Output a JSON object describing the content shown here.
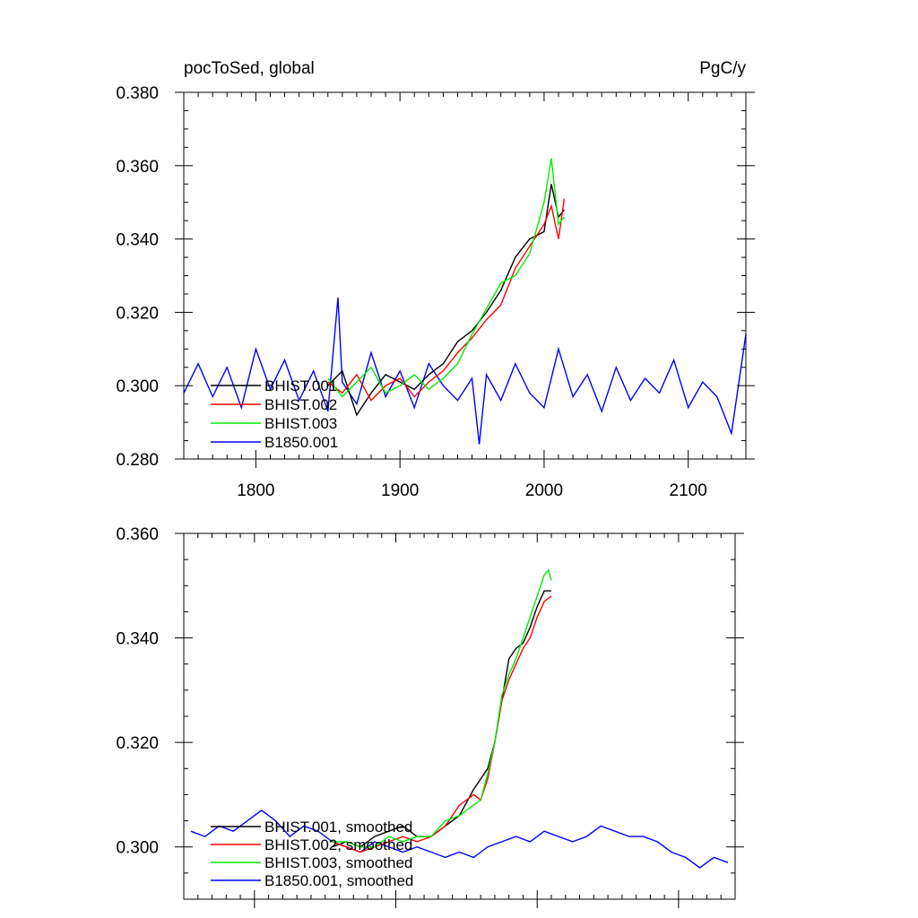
{
  "chart_data": [
    {
      "type": "line",
      "title": "pocToSed, global",
      "units": "PgC/y",
      "xlabel": "",
      "ylabel": "",
      "xlim": [
        1750,
        2140
      ],
      "ylim": [
        0.28,
        0.38
      ],
      "x_ticks": [
        1800,
        1900,
        2000,
        2100
      ],
      "y_ticks": [
        0.28,
        0.3,
        0.32,
        0.34,
        0.36,
        0.38
      ],
      "y_tick_labels": [
        "0.280",
        "0.300",
        "0.320",
        "0.340",
        "0.360",
        "0.380"
      ],
      "x_tick_labels": [
        "1800",
        "1900",
        "2000",
        "2100"
      ],
      "legend_position": "bottom-left",
      "series": [
        {
          "name": "B1850.001",
          "color": "#0000ff",
          "x": [
            1750,
            1760,
            1770,
            1780,
            1790,
            1800,
            1810,
            1820,
            1830,
            1840,
            1850,
            1857,
            1860,
            1870,
            1880,
            1890,
            1900,
            1910,
            1920,
            1930,
            1940,
            1950,
            1955,
            1960,
            1970,
            1980,
            1990,
            2000,
            2010,
            2020,
            2030,
            2040,
            2050,
            2060,
            2070,
            2080,
            2090,
            2100,
            2110,
            2120,
            2130,
            2140
          ],
          "y": [
            0.298,
            0.306,
            0.297,
            0.305,
            0.294,
            0.31,
            0.299,
            0.307,
            0.296,
            0.304,
            0.293,
            0.324,
            0.301,
            0.295,
            0.309,
            0.297,
            0.304,
            0.294,
            0.306,
            0.3,
            0.296,
            0.302,
            0.284,
            0.303,
            0.296,
            0.306,
            0.298,
            0.294,
            0.31,
            0.297,
            0.303,
            0.293,
            0.305,
            0.296,
            0.302,
            0.298,
            0.307,
            0.294,
            0.301,
            0.297,
            0.287,
            0.314
          ]
        },
        {
          "name": "BHIST.001",
          "color": "#000000",
          "x": [
            1850,
            1860,
            1870,
            1880,
            1890,
            1900,
            1910,
            1920,
            1930,
            1940,
            1950,
            1960,
            1970,
            1980,
            1990,
            2000,
            2005,
            2010,
            2014
          ],
          "y": [
            0.3,
            0.304,
            0.292,
            0.298,
            0.303,
            0.301,
            0.299,
            0.303,
            0.306,
            0.312,
            0.315,
            0.32,
            0.326,
            0.335,
            0.34,
            0.342,
            0.355,
            0.346,
            0.348
          ]
        },
        {
          "name": "BHIST.002",
          "color": "#ff0000",
          "x": [
            1850,
            1860,
            1870,
            1880,
            1890,
            1900,
            1910,
            1920,
            1930,
            1940,
            1950,
            1960,
            1970,
            1980,
            1990,
            2000,
            2005,
            2010,
            2014
          ],
          "y": [
            0.301,
            0.298,
            0.303,
            0.296,
            0.3,
            0.302,
            0.297,
            0.301,
            0.304,
            0.309,
            0.313,
            0.318,
            0.322,
            0.332,
            0.338,
            0.344,
            0.349,
            0.34,
            0.351
          ]
        },
        {
          "name": "BHIST.003",
          "color": "#00ee00",
          "x": [
            1850,
            1860,
            1870,
            1880,
            1890,
            1900,
            1910,
            1920,
            1930,
            1940,
            1950,
            1960,
            1970,
            1980,
            1990,
            2000,
            2005,
            2010,
            2014
          ],
          "y": [
            0.302,
            0.297,
            0.301,
            0.305,
            0.298,
            0.3,
            0.303,
            0.299,
            0.302,
            0.306,
            0.314,
            0.321,
            0.328,
            0.33,
            0.336,
            0.35,
            0.362,
            0.344,
            0.346
          ]
        }
      ]
    },
    {
      "type": "line",
      "title": "",
      "xlabel": "",
      "ylabel": "",
      "xlim": [
        1750,
        2140
      ],
      "ylim": [
        0.29,
        0.36
      ],
      "x_ticks": [
        1800,
        1900,
        2000,
        2100
      ],
      "y_ticks": [
        0.3,
        0.32,
        0.34,
        0.36
      ],
      "y_tick_labels": [
        "0.300",
        "0.320",
        "0.340",
        "0.360"
      ],
      "legend_position": "bottom-left",
      "series": [
        {
          "name": "B1850.001, smoothed",
          "color": "#0000ff",
          "x": [
            1755,
            1765,
            1775,
            1785,
            1795,
            1805,
            1815,
            1825,
            1835,
            1845,
            1855,
            1865,
            1875,
            1885,
            1895,
            1905,
            1915,
            1925,
            1935,
            1945,
            1955,
            1965,
            1975,
            1985,
            1995,
            2005,
            2015,
            2025,
            2035,
            2045,
            2055,
            2065,
            2075,
            2085,
            2095,
            2105,
            2115,
            2125,
            2135
          ],
          "y": [
            0.303,
            0.302,
            0.304,
            0.303,
            0.305,
            0.307,
            0.305,
            0.302,
            0.304,
            0.303,
            0.301,
            0.3,
            0.299,
            0.301,
            0.3,
            0.299,
            0.3,
            0.299,
            0.298,
            0.299,
            0.298,
            0.3,
            0.301,
            0.302,
            0.301,
            0.303,
            0.302,
            0.301,
            0.302,
            0.304,
            0.303,
            0.302,
            0.302,
            0.301,
            0.299,
            0.298,
            0.296,
            0.298,
            0.297
          ]
        },
        {
          "name": "BHIST.001, smoothed",
          "color": "#000000",
          "x": [
            1855,
            1865,
            1875,
            1885,
            1895,
            1905,
            1915,
            1925,
            1935,
            1945,
            1955,
            1960,
            1965,
            1970,
            1975,
            1980,
            1985,
            1990,
            1995,
            2000,
            2005,
            2010
          ],
          "y": [
            0.3,
            0.301,
            0.3,
            0.302,
            0.303,
            0.304,
            0.302,
            0.302,
            0.304,
            0.306,
            0.311,
            0.313,
            0.315,
            0.32,
            0.328,
            0.336,
            0.338,
            0.339,
            0.342,
            0.346,
            0.349,
            0.349
          ]
        },
        {
          "name": "BHIST.002, smoothed",
          "color": "#ff0000",
          "x": [
            1855,
            1865,
            1875,
            1885,
            1895,
            1905,
            1915,
            1925,
            1935,
            1945,
            1955,
            1960,
            1965,
            1970,
            1975,
            1980,
            1985,
            1990,
            1995,
            2000,
            2005,
            2010
          ],
          "y": [
            0.301,
            0.3,
            0.299,
            0.3,
            0.301,
            0.302,
            0.301,
            0.302,
            0.304,
            0.308,
            0.31,
            0.309,
            0.313,
            0.32,
            0.328,
            0.332,
            0.335,
            0.338,
            0.34,
            0.344,
            0.347,
            0.348
          ]
        },
        {
          "name": "BHIST.003, smoothed",
          "color": "#00ee00",
          "x": [
            1855,
            1865,
            1875,
            1885,
            1895,
            1905,
            1915,
            1925,
            1935,
            1945,
            1955,
            1960,
            1965,
            1970,
            1975,
            1980,
            1985,
            1990,
            1995,
            2000,
            2005,
            2008,
            2010
          ],
          "y": [
            0.301,
            0.301,
            0.3,
            0.3,
            0.302,
            0.301,
            0.302,
            0.302,
            0.305,
            0.306,
            0.308,
            0.309,
            0.314,
            0.32,
            0.329,
            0.333,
            0.336,
            0.34,
            0.344,
            0.348,
            0.352,
            0.353,
            0.351
          ]
        }
      ]
    }
  ]
}
